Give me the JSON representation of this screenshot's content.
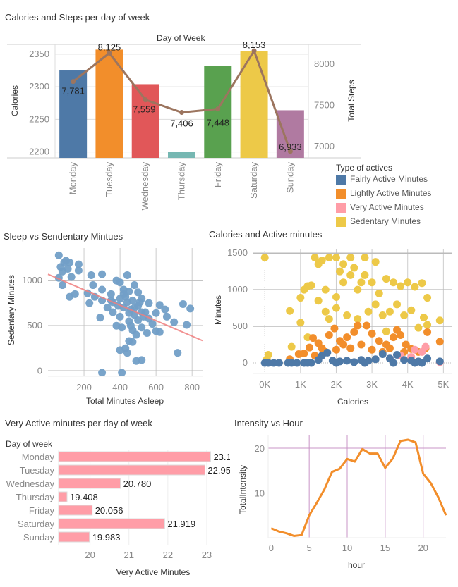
{
  "chart_data": [
    {
      "type": "bar+line",
      "title": "Calories and Steps per day of week",
      "xlabel": "Day of Week",
      "ylabel": "Calories",
      "ylabel_right": "Total Steps",
      "categories": [
        "Monday",
        "Tuesday",
        "Wednesday",
        "Thursday",
        "Friday",
        "Saturday",
        "Sunday"
      ],
      "bar_values": [
        2325,
        2357,
        2304,
        2200,
        2332,
        2355,
        2264
      ],
      "bar_colors": [
        "#4e79a7",
        "#f28e2b",
        "#e15759",
        "#76b7b2",
        "#59a14f",
        "#edc948",
        "#b07aa1"
      ],
      "line_values": [
        7781,
        8125,
        7559,
        7406,
        7448,
        8153,
        6933
      ],
      "line_labels": [
        "7,781",
        "8,125",
        "7,559",
        "7,406",
        "7,448",
        "8,153",
        "6,933"
      ],
      "line_color": "#9c755f",
      "ylim": [
        2191,
        2365
      ],
      "yticks": [
        2200,
        2250,
        2300,
        2350
      ],
      "ylim_right": [
        6855,
        8231
      ],
      "yticks_right": [
        7000,
        7500,
        8000
      ]
    },
    {
      "type": "scatter",
      "title": "Sleep vs Sendentary Mintues",
      "xlabel": "Total Minutes Asleep",
      "ylabel": "Sedentary Minutes",
      "xlim": [
        0,
        858
      ],
      "ylim": [
        -60,
        1360
      ],
      "xticks": [
        200,
        400,
        600,
        800
      ],
      "yticks": [
        0,
        500,
        1000
      ],
      "color": "#729fc7",
      "trend_color": "#f08080",
      "trend": [
        [
          0,
          1070
        ],
        [
          858,
          335
        ]
      ],
      "points": [
        [
          60,
          1280
        ],
        [
          70,
          1150
        ],
        [
          90,
          1200
        ],
        [
          100,
          1220
        ],
        [
          120,
          1200
        ],
        [
          80,
          1100
        ],
        [
          110,
          1130
        ],
        [
          130,
          1040
        ],
        [
          60,
          1030
        ],
        [
          80,
          950
        ],
        [
          120,
          820
        ],
        [
          150,
          850
        ],
        [
          170,
          1180
        ],
        [
          170,
          1110
        ],
        [
          240,
          1060
        ],
        [
          300,
          1070
        ],
        [
          440,
          1060
        ],
        [
          250,
          950
        ],
        [
          300,
          900
        ],
        [
          220,
          860
        ],
        [
          230,
          750
        ],
        [
          260,
          820
        ],
        [
          300,
          780
        ],
        [
          350,
          850
        ],
        [
          380,
          1000
        ],
        [
          400,
          980
        ],
        [
          420,
          900
        ],
        [
          450,
          880
        ],
        [
          480,
          950
        ],
        [
          500,
          870
        ],
        [
          330,
          700
        ],
        [
          290,
          590
        ],
        [
          360,
          650
        ],
        [
          400,
          600
        ],
        [
          420,
          700
        ],
        [
          440,
          760
        ],
        [
          460,
          680
        ],
        [
          480,
          620
        ],
        [
          500,
          720
        ],
        [
          520,
          800
        ],
        [
          540,
          650
        ],
        [
          560,
          750
        ],
        [
          380,
          500
        ],
        [
          410,
          480
        ],
        [
          450,
          550
        ],
        [
          470,
          450
        ],
        [
          490,
          400
        ],
        [
          520,
          480
        ],
        [
          550,
          420
        ],
        [
          580,
          520
        ],
        [
          600,
          440
        ],
        [
          620,
          430
        ],
        [
          600,
          640
        ],
        [
          620,
          730
        ],
        [
          650,
          680
        ],
        [
          660,
          600
        ],
        [
          700,
          540
        ],
        [
          750,
          740
        ],
        [
          790,
          690
        ],
        [
          770,
          510
        ],
        [
          720,
          200
        ],
        [
          400,
          230
        ],
        [
          430,
          250
        ],
        [
          440,
          200
        ],
        [
          450,
          330
        ],
        [
          470,
          320
        ],
        [
          490,
          110
        ],
        [
          520,
          120
        ],
        [
          300,
          -20
        ],
        [
          410,
          -20
        ],
        [
          350,
          780
        ],
        [
          430,
          820
        ],
        [
          470,
          780
        ],
        [
          510,
          760
        ],
        [
          530,
          600
        ],
        [
          390,
          720
        ],
        [
          450,
          640
        ],
        [
          500,
          560
        ],
        [
          560,
          580
        ],
        [
          460,
          500
        ],
        [
          420,
          850
        ],
        [
          480,
          700
        ],
        [
          520,
          650
        ],
        [
          360,
          760
        ],
        [
          400,
          800
        ]
      ]
    },
    {
      "type": "scatter",
      "title": "Calories and Active minutes",
      "xlabel": "Calories",
      "ylabel": "Minutes",
      "xlim": [
        -320,
        5230
      ],
      "ylim": [
        -145,
        1560
      ],
      "xticks": [
        0,
        1000,
        2000,
        3000,
        4000,
        5000
      ],
      "xtick_labels": [
        "0K",
        "1K",
        "2K",
        "3K",
        "4K",
        "5K"
      ],
      "yticks": [
        0,
        500,
        1000,
        1500
      ],
      "legend_title": "Type of actives",
      "legend_position": "right",
      "series": [
        {
          "name": "Sedentary Minutes",
          "color": "#edc948",
          "points": [
            [
              0,
              1440
            ],
            [
              60,
              50
            ],
            [
              100,
              110
            ],
            [
              700,
              710
            ],
            [
              750,
              220
            ],
            [
              1000,
              550
            ],
            [
              1000,
              890
            ],
            [
              1100,
              1000
            ],
            [
              1200,
              1050
            ],
            [
              1300,
              1060
            ],
            [
              1200,
              350
            ],
            [
              1400,
              1440
            ],
            [
              1500,
              1350
            ],
            [
              1600,
              1400
            ],
            [
              1800,
              1440
            ],
            [
              2000,
              1440
            ],
            [
              2200,
              1350
            ],
            [
              2400,
              1440
            ],
            [
              2800,
              1440
            ],
            [
              3100,
              1380
            ],
            [
              1500,
              850
            ],
            [
              1700,
              700
            ],
            [
              1800,
              600
            ],
            [
              2000,
              900
            ],
            [
              2200,
              1100
            ],
            [
              2400,
              1200
            ],
            [
              2600,
              1000
            ],
            [
              2800,
              1200
            ],
            [
              3000,
              1100
            ],
            [
              3200,
              950
            ],
            [
              3400,
              1150
            ],
            [
              3600,
              1100
            ],
            [
              3800,
              1050
            ],
            [
              4000,
              1100
            ],
            [
              4200,
              1040
            ],
            [
              4400,
              1090
            ],
            [
              4550,
              890
            ],
            [
              2000,
              750
            ],
            [
              2300,
              650
            ],
            [
              2600,
              600
            ],
            [
              2900,
              700
            ],
            [
              3100,
              800
            ],
            [
              3300,
              650
            ],
            [
              3500,
              700
            ],
            [
              3700,
              800
            ],
            [
              3900,
              650
            ],
            [
              4100,
              720
            ],
            [
              4300,
              480
            ],
            [
              4450,
              620
            ],
            [
              4550,
              520
            ],
            [
              4900,
              580
            ],
            [
              3400,
              430
            ],
            [
              2500,
              1300
            ],
            [
              2100,
              1250
            ],
            [
              2700,
              1100
            ],
            [
              1700,
              1000
            ]
          ]
        },
        {
          "name": "Lightly Active Minutes",
          "color": "#f28e2b",
          "points": [
            [
              700,
              50
            ],
            [
              950,
              120
            ],
            [
              1100,
              130
            ],
            [
              1250,
              210
            ],
            [
              1350,
              340
            ],
            [
              1500,
              270
            ],
            [
              1600,
              200
            ],
            [
              1800,
              380
            ],
            [
              1950,
              470
            ],
            [
              2100,
              300
            ],
            [
              2300,
              350
            ],
            [
              2500,
              420
            ],
            [
              2600,
              510
            ],
            [
              2850,
              510
            ],
            [
              3000,
              400
            ],
            [
              3200,
              300
            ],
            [
              3400,
              250
            ],
            [
              3600,
              350
            ],
            [
              3700,
              450
            ],
            [
              3800,
              380
            ],
            [
              3950,
              250
            ],
            [
              4100,
              190
            ],
            [
              4300,
              150
            ],
            [
              4500,
              200
            ],
            [
              4550,
              420
            ],
            [
              4900,
              290
            ],
            [
              1700,
              150
            ],
            [
              2000,
              180
            ],
            [
              2400,
              200
            ],
            [
              2700,
              250
            ],
            [
              3000,
              180
            ],
            [
              3300,
              150
            ],
            [
              3500,
              200
            ],
            [
              3900,
              150
            ],
            [
              1400,
              100
            ],
            [
              2200,
              250
            ]
          ]
        },
        {
          "name": "Very Active Minutes",
          "color": "#ff9da7",
          "points": [
            [
              3800,
              100
            ],
            [
              4200,
              180
            ],
            [
              4500,
              220
            ],
            [
              4400,
              150
            ],
            [
              4900,
              10
            ],
            [
              3500,
              60
            ],
            [
              4100,
              80
            ]
          ]
        },
        {
          "name": "Fairly Active Minutes",
          "color": "#4e79a7",
          "points": [
            [
              0,
              0
            ],
            [
              100,
              0
            ],
            [
              250,
              0
            ],
            [
              400,
              0
            ],
            [
              650,
              0
            ],
            [
              750,
              0
            ],
            [
              900,
              0
            ],
            [
              1100,
              0
            ],
            [
              1300,
              0
            ],
            [
              1500,
              40
            ],
            [
              1600,
              100
            ],
            [
              1750,
              140
            ],
            [
              1900,
              30
            ],
            [
              2100,
              20
            ],
            [
              2300,
              30
            ],
            [
              2500,
              10
            ],
            [
              2700,
              40
            ],
            [
              2900,
              30
            ],
            [
              3100,
              50
            ],
            [
              3300,
              120
            ],
            [
              3500,
              60
            ],
            [
              3700,
              110
            ],
            [
              3900,
              40
            ],
            [
              4100,
              30
            ],
            [
              4300,
              20
            ],
            [
              4400,
              0
            ],
            [
              4550,
              60
            ],
            [
              4900,
              20
            ],
            [
              1200,
              0
            ],
            [
              2000,
              0
            ],
            [
              2800,
              0
            ],
            [
              3600,
              0
            ],
            [
              4200,
              0
            ]
          ]
        }
      ]
    },
    {
      "type": "bar",
      "orientation": "horizontal",
      "title": "Very Active minutes per day of week",
      "ylabel": "Day of week",
      "xlabel": "Very Active Minutes",
      "categories": [
        "Monday",
        "Tuesday",
        "Wednesday",
        "Thursday",
        "Friday",
        "Saturday",
        "Sunday"
      ],
      "values": [
        23.1,
        22.954,
        20.78,
        19.408,
        20.056,
        21.919,
        19.983
      ],
      "value_labels": [
        "23.10",
        "22.954",
        "20.780",
        "19.408",
        "20.056",
        "21.919",
        "19.983"
      ],
      "color": "#ff9da7",
      "xlim": [
        19.19,
        23.6
      ],
      "xticks": [
        20,
        21,
        22,
        23
      ]
    },
    {
      "type": "line",
      "title": "Intensity vs Hour",
      "xlabel": "hour",
      "ylabel": "TotalIntensity",
      "color": "#f28e2b",
      "grid_color": "#c994c7",
      "x": [
        0,
        1,
        2,
        3,
        4,
        5,
        6,
        7,
        8,
        9,
        10,
        11,
        12,
        13,
        14,
        15,
        16,
        17,
        18,
        19,
        20,
        21,
        22,
        23
      ],
      "values": [
        2.1,
        1.4,
        1.0,
        0.4,
        0.6,
        5.0,
        7.8,
        10.8,
        14.7,
        15.4,
        17.6,
        17.0,
        19.8,
        18.8,
        18.8,
        15.6,
        17.7,
        21.6,
        21.9,
        21.3,
        14.3,
        12.2,
        9.0,
        5.0
      ],
      "xlim": [
        -0.4,
        23
      ],
      "ylim": [
        0,
        23
      ],
      "xticks": [
        0,
        5,
        10,
        15,
        20
      ],
      "yticks": [
        10,
        20
      ]
    }
  ]
}
